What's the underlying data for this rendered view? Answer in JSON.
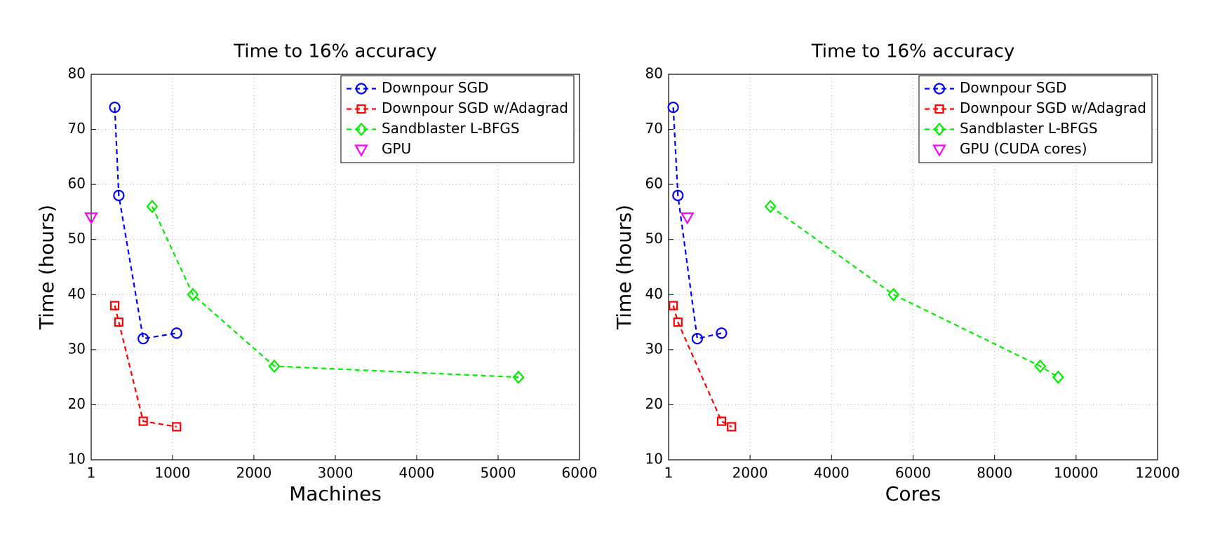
{
  "chart_data": [
    {
      "type": "line",
      "title": "Time to 16% accuracy",
      "xlabel": "Machines",
      "ylabel": "Time (hours)",
      "xlim": [
        1,
        6000
      ],
      "xticks": [
        1,
        1000,
        2000,
        3000,
        4000,
        5000,
        6000
      ],
      "ylim": [
        10,
        80
      ],
      "yticks": [
        10,
        20,
        30,
        40,
        50,
        60,
        70,
        80
      ],
      "grid": true,
      "legend": "upper right",
      "series": [
        {
          "name": "Downpour SGD",
          "color": "#0000ff",
          "marker": "circle",
          "linestyle": "dashed",
          "x": [
            290,
            340,
            640,
            1050
          ],
          "values": [
            74,
            58,
            32,
            33
          ]
        },
        {
          "name": "Downpour SGD w/Adagrad",
          "color": "#ff0000",
          "marker": "square",
          "linestyle": "dashed",
          "x": [
            290,
            340,
            640,
            1050
          ],
          "values": [
            38,
            35,
            17,
            16
          ]
        },
        {
          "name": "Sandblaster L-BFGS",
          "color": "#00ee00",
          "marker": "diamond",
          "linestyle": "dashed",
          "x": [
            750,
            1250,
            2250,
            5250
          ],
          "values": [
            56,
            40,
            27,
            25
          ]
        },
        {
          "name": "GPU",
          "color": "#ff00ff",
          "marker": "triangle-down",
          "linestyle": "none",
          "x": [
            1
          ],
          "values": [
            54
          ]
        }
      ]
    },
    {
      "type": "line",
      "title": "Time to 16% accuracy",
      "xlabel": "Cores",
      "ylabel": "Time (hours)",
      "xlim": [
        1,
        12000
      ],
      "xticks": [
        1,
        2000,
        4000,
        6000,
        8000,
        10000,
        12000
      ],
      "ylim": [
        10,
        80
      ],
      "yticks": [
        10,
        20,
        30,
        40,
        50,
        60,
        70,
        80
      ],
      "grid": true,
      "legend": "upper right",
      "series": [
        {
          "name": "Downpour SGD",
          "color": "#0000ff",
          "marker": "circle",
          "linestyle": "dashed",
          "x": [
            115,
            230,
            705,
            1300
          ],
          "values": [
            74,
            58,
            32,
            33
          ]
        },
        {
          "name": "Downpour SGD w/Adagrad",
          "color": "#ff0000",
          "marker": "square",
          "linestyle": "dashed",
          "x": [
            115,
            230,
            1300,
            1545
          ],
          "values": [
            38,
            35,
            17,
            16
          ]
        },
        {
          "name": "Sandblaster L-BFGS",
          "color": "#00ee00",
          "marker": "diamond",
          "linestyle": "dashed",
          "x": [
            2500,
            5520,
            9120,
            9560
          ],
          "values": [
            56,
            40,
            27,
            25
          ]
        },
        {
          "name": "GPU (CUDA cores)",
          "color": "#ff00ff",
          "marker": "triangle-down",
          "linestyle": "none",
          "x": [
            460
          ],
          "values": [
            54
          ]
        }
      ]
    }
  ]
}
